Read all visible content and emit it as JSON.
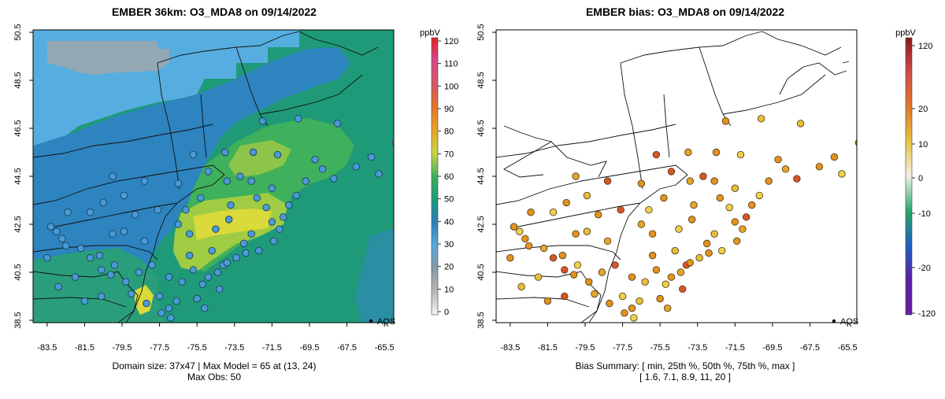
{
  "colors": {
    "ocean_green": "#1f9a78",
    "land_blue": "#2d84bf",
    "pale_blue": "#56aee0",
    "grey_patch": "#9aa7b0",
    "mid_green": "#3fb05c",
    "yellow_green": "#9fcc42",
    "yellow": "#dada3a",
    "marker_blue": "#4a9ad6",
    "marker_orange": "#e0931e",
    "marker_yellow": "#ecd24a",
    "marker_redorange": "#d8552a"
  },
  "left_map": {
    "title": "EMBER 36km: O3_MDA8 on 09/14/2022",
    "x_ticks": [
      "-83.5",
      "-81.5",
      "-79.5",
      "-77.5",
      "-75.5",
      "-73.5",
      "-71.5",
      "-69.5",
      "-67.5",
      "-65.5"
    ],
    "y_ticks": [
      "38.5",
      "40.5",
      "42.5",
      "44.5",
      "46.5",
      "48.5",
      "50.5"
    ],
    "legend_label": "AQS",
    "caption_line1": "Domain size: 37x47 | Max Model = 65 at (13, 24)",
    "caption_line2": "Max Obs: 50",
    "colorbar": {
      "unit": "ppbV",
      "labels": [
        "0",
        "10",
        "20",
        "30",
        "40",
        "50",
        "60",
        "70",
        "80",
        "90",
        "100",
        "110",
        "120"
      ],
      "stops": [
        "#f5f5f5",
        "#b8b8b8",
        "#8a9aa5",
        "#57a9dd",
        "#2c7fba",
        "#1b9b79",
        "#3fb05c",
        "#c8d64a",
        "#e8a426",
        "#e0762a",
        "#d35864",
        "#d44a8e",
        "#e32222"
      ]
    }
  },
  "right_map": {
    "title": "EMBER bias: O3_MDA8 on 09/14/2022",
    "x_ticks": [
      "-83.5",
      "-81.5",
      "-79.5",
      "-77.5",
      "-75.5",
      "-73.5",
      "-71.5",
      "-69.5",
      "-67.5",
      "-65.5"
    ],
    "y_ticks": [
      "38.5",
      "40.5",
      "42.5",
      "44.5",
      "46.5",
      "48.5",
      "50.5"
    ],
    "legend_label": "AQS",
    "caption_line1": "Bias Summary: [ min, 25th %, 50th %, 75th %, max ]",
    "caption_line2": "[ 1.6,  7.1,  8.9,  11,  20 ]",
    "colorbar": {
      "unit": "ppbV",
      "labels": [
        "120",
        "20",
        "10",
        "0",
        "-10",
        "-20",
        "-120"
      ],
      "stops": [
        "#8b1a1a",
        "#d24a4a",
        "#e0762a",
        "#e8c440",
        "#f0f0e6",
        "#2ca66a",
        "#1d5fbf",
        "#5a20a8",
        "#6a1f9e"
      ]
    }
  },
  "stations": [
    {
      "lon": -83.3,
      "lat": 42.4
    },
    {
      "lon": -83.0,
      "lat": 42.2
    },
    {
      "lon": -82.5,
      "lat": 41.6
    },
    {
      "lon": -81.7,
      "lat": 41.5
    },
    {
      "lon": -81.2,
      "lat": 41.1
    },
    {
      "lon": -80.7,
      "lat": 41.2
    },
    {
      "lon": -82.0,
      "lat": 40.3
    },
    {
      "lon": -80.1,
      "lat": 40.4
    },
    {
      "lon": -79.9,
      "lat": 40.8
    },
    {
      "lon": -79.3,
      "lat": 40.1
    },
    {
      "lon": -78.6,
      "lat": 40.5
    },
    {
      "lon": -77.9,
      "lat": 40.8
    },
    {
      "lon": -77.0,
      "lat": 40.3
    },
    {
      "lon": -76.3,
      "lat": 40.1
    },
    {
      "lon": -75.7,
      "lat": 40.6
    },
    {
      "lon": -75.2,
      "lat": 40.0
    },
    {
      "lon": -74.9,
      "lat": 40.3
    },
    {
      "lon": -74.4,
      "lat": 40.5
    },
    {
      "lon": -74.1,
      "lat": 40.8
    },
    {
      "lon": -73.9,
      "lat": 40.9
    },
    {
      "lon": -73.4,
      "lat": 41.1
    },
    {
      "lon": -72.9,
      "lat": 41.3
    },
    {
      "lon": -72.2,
      "lat": 41.4
    },
    {
      "lon": -71.4,
      "lat": 41.8
    },
    {
      "lon": -71.1,
      "lat": 42.3
    },
    {
      "lon": -70.9,
      "lat": 42.8
    },
    {
      "lon": -71.5,
      "lat": 42.6
    },
    {
      "lon": -72.6,
      "lat": 42.1
    },
    {
      "lon": -73.8,
      "lat": 42.7
    },
    {
      "lon": -74.5,
      "lat": 42.3
    },
    {
      "lon": -75.9,
      "lat": 42.1
    },
    {
      "lon": -76.5,
      "lat": 42.5
    },
    {
      "lon": -77.6,
      "lat": 43.1
    },
    {
      "lon": -78.8,
      "lat": 42.9
    },
    {
      "lon": -79.4,
      "lat": 42.2
    },
    {
      "lon": -80.0,
      "lat": 42.1
    },
    {
      "lon": -76.1,
      "lat": 43.1
    },
    {
      "lon": -75.3,
      "lat": 43.6
    },
    {
      "lon": -73.7,
      "lat": 43.3
    },
    {
      "lon": -73.2,
      "lat": 44.5
    },
    {
      "lon": -72.6,
      "lat": 44.3
    },
    {
      "lon": -71.5,
      "lat": 44.0
    },
    {
      "lon": -70.6,
      "lat": 43.3
    },
    {
      "lon": -70.2,
      "lat": 43.7
    },
    {
      "lon": -69.7,
      "lat": 44.3
    },
    {
      "lon": -68.8,
      "lat": 44.8
    },
    {
      "lon": -68.2,
      "lat": 44.4
    },
    {
      "lon": -67.0,
      "lat": 44.9
    },
    {
      "lon": -68.0,
      "lat": 46.7
    },
    {
      "lon": -69.2,
      "lat": 45.2
    },
    {
      "lon": -71.2,
      "lat": 45.4
    },
    {
      "lon": -72.5,
      "lat": 45.5
    },
    {
      "lon": -74.0,
      "lat": 45.5
    },
    {
      "lon": -75.7,
      "lat": 45.4
    },
    {
      "lon": -76.5,
      "lat": 44.2
    },
    {
      "lon": -79.4,
      "lat": 43.7
    },
    {
      "lon": -80.5,
      "lat": 43.4
    },
    {
      "lon": -81.2,
      "lat": 43.0
    },
    {
      "lon": -82.4,
      "lat": 43.0
    },
    {
      "lon": -80.0,
      "lat": 44.5
    },
    {
      "lon": -78.3,
      "lat": 44.3
    },
    {
      "lon": -77.0,
      "lat": 39.0
    },
    {
      "lon": -76.6,
      "lat": 39.3
    },
    {
      "lon": -77.4,
      "lat": 38.8
    },
    {
      "lon": -77.5,
      "lat": 39.5
    },
    {
      "lon": -78.2,
      "lat": 39.2
    },
    {
      "lon": -79.0,
      "lat": 39.6
    },
    {
      "lon": -80.6,
      "lat": 39.5
    },
    {
      "lon": -81.5,
      "lat": 39.3
    },
    {
      "lon": -82.9,
      "lat": 39.9
    },
    {
      "lon": -83.5,
      "lat": 41.1
    },
    {
      "lon": -76.9,
      "lat": 38.6
    },
    {
      "lon": -75.5,
      "lat": 39.4
    },
    {
      "lon": -75.1,
      "lat": 39.0
    },
    {
      "lon": -74.3,
      "lat": 39.8
    },
    {
      "lon": -75.9,
      "lat": 41.2
    },
    {
      "lon": -74.7,
      "lat": 41.4
    },
    {
      "lon": -73.0,
      "lat": 41.7
    },
    {
      "lon": -71.8,
      "lat": 43.2
    },
    {
      "lon": -72.3,
      "lat": 43.6
    },
    {
      "lon": -73.9,
      "lat": 44.3
    },
    {
      "lon": -74.9,
      "lat": 44.7
    },
    {
      "lon": -72.0,
      "lat": 46.8
    },
    {
      "lon": -70.1,
      "lat": 46.9
    },
    {
      "lon": -66.2,
      "lat": 45.3
    },
    {
      "lon": -65.8,
      "lat": 44.6
    },
    {
      "lon": -64.9,
      "lat": 45.9
    },
    {
      "lon": -78.3,
      "lat": 41.8
    },
    {
      "lon": -80.6,
      "lat": 40.6
    },
    {
      "lon": -82.7,
      "lat": 41.9
    }
  ]
}
